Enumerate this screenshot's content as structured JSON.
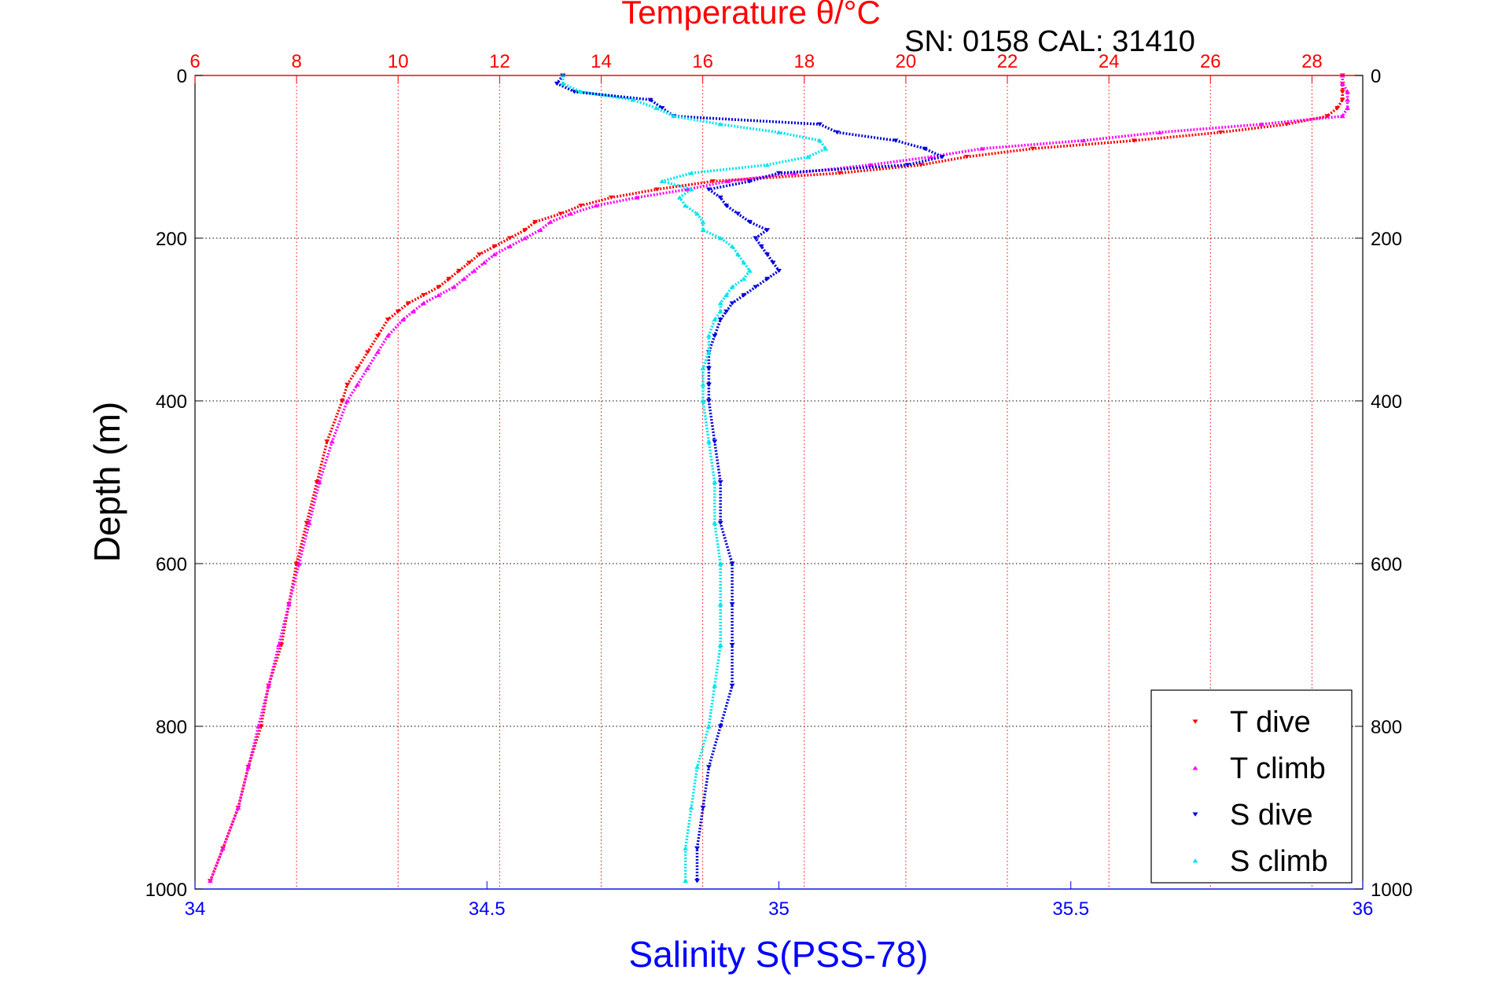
{
  "sn_label": "SN: 0158  CAL: 31410",
  "colors": {
    "t_dive": "#ff0000",
    "t_climb": "#ff00ff",
    "s_dive": "#0000dd",
    "s_climb": "#00e5ee",
    "top_axis": "#ff0000",
    "bottom_axis": "#0000ff"
  },
  "chart_data": {
    "type": "scatter",
    "title": "Temperature θ/°C",
    "top_xlabel": "Temperature θ/°C",
    "xlabel": "Salinity S(PSS-78)",
    "ylabel": "Depth (m)",
    "ylim": [
      0,
      1000
    ],
    "y_reversed": true,
    "top_xlim": [
      6,
      29
    ],
    "bottom_xlim": [
      34,
      36
    ],
    "grid": true,
    "legend_position": "bottom-right",
    "y_ticks": [
      "0",
      "200",
      "400",
      "600",
      "800",
      "1000"
    ],
    "top_ticks": [
      "6",
      "8",
      "10",
      "12",
      "14",
      "16",
      "18",
      "20",
      "22",
      "24",
      "26",
      "28"
    ],
    "bottom_ticks": [
      "34",
      "34.5",
      "35",
      "35.5",
      "36"
    ],
    "series": [
      {
        "name": "T dive",
        "axis": "top",
        "marker": "triangle-down",
        "depth": [
          0,
          10,
          20,
          30,
          40,
          50,
          60,
          70,
          80,
          90,
          100,
          110,
          120,
          130,
          140,
          150,
          160,
          170,
          180,
          190,
          200,
          210,
          220,
          230,
          240,
          250,
          260,
          270,
          280,
          290,
          300,
          320,
          340,
          360,
          380,
          400,
          450,
          500,
          550,
          600,
          650,
          700,
          750,
          800,
          850,
          900,
          950,
          990
        ],
        "value": [
          28.6,
          28.6,
          28.6,
          28.6,
          28.5,
          28.3,
          27.5,
          26.2,
          24.5,
          22.5,
          21.2,
          20.3,
          18.7,
          16.2,
          15.1,
          14.2,
          13.6,
          13.2,
          12.7,
          12.5,
          12.2,
          11.9,
          11.6,
          11.4,
          11.2,
          11.0,
          10.8,
          10.5,
          10.2,
          10.0,
          9.8,
          9.6,
          9.4,
          9.2,
          9.0,
          8.9,
          8.6,
          8.4,
          8.2,
          8.0,
          7.85,
          7.7,
          7.45,
          7.3,
          7.05,
          6.85,
          6.55,
          6.3
        ]
      },
      {
        "name": "T climb",
        "axis": "top",
        "marker": "triangle-up",
        "depth": [
          0,
          10,
          20,
          30,
          40,
          50,
          60,
          70,
          80,
          90,
          100,
          110,
          120,
          130,
          140,
          150,
          160,
          170,
          180,
          190,
          200,
          210,
          220,
          230,
          240,
          250,
          260,
          270,
          280,
          290,
          300,
          320,
          340,
          360,
          380,
          400,
          450,
          500,
          550,
          600,
          650,
          700,
          750,
          800,
          850,
          900,
          950,
          990
        ],
        "value": [
          28.6,
          28.6,
          28.7,
          28.7,
          28.7,
          28.6,
          27.0,
          25.0,
          23.5,
          21.5,
          20.5,
          19.3,
          17.8,
          16.5,
          15.7,
          14.7,
          13.9,
          13.4,
          13.0,
          12.8,
          12.5,
          12.2,
          11.9,
          11.7,
          11.5,
          11.3,
          11.1,
          10.8,
          10.5,
          10.3,
          10.1,
          9.8,
          9.6,
          9.4,
          9.2,
          9.0,
          8.7,
          8.45,
          8.25,
          8.05,
          7.85,
          7.65,
          7.45,
          7.25,
          7.05,
          6.85,
          6.55,
          6.3
        ]
      },
      {
        "name": "S dive",
        "axis": "bottom",
        "marker": "triangle-down",
        "depth": [
          0,
          10,
          20,
          30,
          40,
          50,
          60,
          70,
          80,
          90,
          100,
          110,
          120,
          130,
          140,
          150,
          160,
          170,
          180,
          190,
          200,
          210,
          220,
          230,
          240,
          250,
          260,
          270,
          280,
          290,
          300,
          320,
          340,
          360,
          380,
          400,
          450,
          500,
          550,
          600,
          650,
          700,
          750,
          800,
          850,
          900,
          950,
          990
        ],
        "value": [
          34.63,
          34.62,
          34.65,
          34.78,
          34.8,
          34.82,
          35.07,
          35.1,
          35.2,
          35.25,
          35.28,
          35.22,
          35.0,
          34.95,
          34.88,
          34.9,
          34.91,
          34.93,
          34.95,
          34.98,
          34.96,
          34.97,
          34.98,
          34.99,
          35.0,
          34.98,
          34.96,
          34.94,
          34.92,
          34.91,
          34.9,
          34.89,
          34.88,
          34.88,
          34.88,
          34.88,
          34.89,
          34.9,
          34.9,
          34.92,
          34.92,
          34.92,
          34.92,
          34.9,
          34.88,
          34.87,
          34.86,
          34.86
        ]
      },
      {
        "name": "S climb",
        "axis": "bottom",
        "marker": "triangle-up",
        "depth": [
          0,
          10,
          20,
          30,
          40,
          50,
          60,
          70,
          80,
          90,
          100,
          110,
          120,
          130,
          140,
          150,
          160,
          170,
          180,
          190,
          200,
          210,
          220,
          230,
          240,
          250,
          260,
          270,
          280,
          290,
          300,
          320,
          340,
          360,
          380,
          400,
          450,
          500,
          550,
          600,
          650,
          700,
          750,
          800,
          850,
          900,
          950,
          990
        ],
        "value": [
          34.63,
          34.63,
          34.66,
          34.75,
          34.79,
          34.82,
          34.9,
          35.0,
          35.07,
          35.08,
          35.05,
          34.98,
          34.85,
          34.8,
          34.85,
          34.83,
          34.84,
          34.86,
          34.87,
          34.87,
          34.9,
          34.92,
          34.93,
          34.94,
          34.95,
          34.94,
          34.92,
          34.91,
          34.9,
          34.9,
          34.89,
          34.88,
          34.88,
          34.87,
          34.87,
          34.87,
          34.88,
          34.89,
          34.89,
          34.9,
          34.9,
          34.9,
          34.89,
          34.88,
          34.86,
          34.85,
          34.84,
          34.84
        ]
      }
    ]
  }
}
